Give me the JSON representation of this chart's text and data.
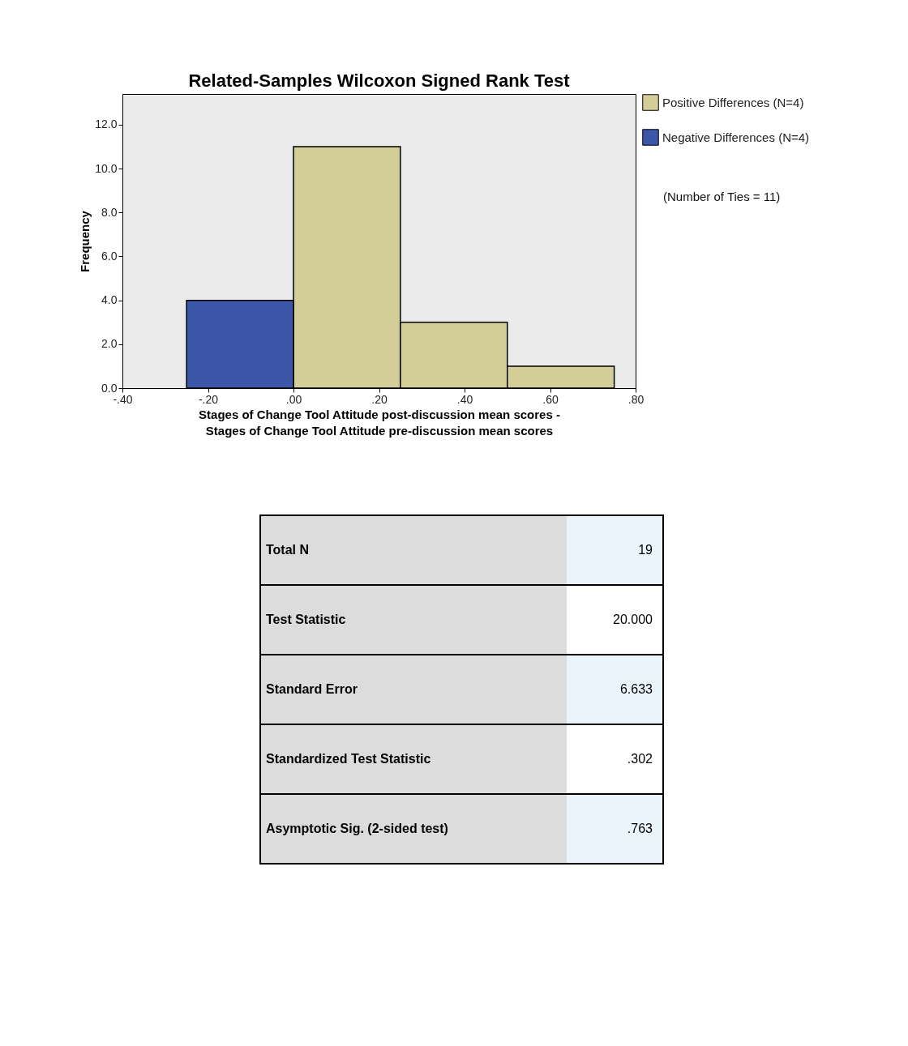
{
  "chart_data": [
    {
      "type": "histogram",
      "title": "Related-Samples Wilcoxon Signed Rank Test",
      "xlabel": "Stages of Change Tool Attitude post-discussion mean scores - Stages of Change Tool Attitude pre-discussion mean scores",
      "ylabel": "Frequency",
      "bins": [
        -0.25,
        0,
        0.25,
        0.5,
        0.75
      ],
      "series": [
        {
          "name": "Positive Differences (N=4)",
          "color": "#d3ce97",
          "values": [
            null,
            11,
            3,
            1
          ]
        },
        {
          "name": "Negative Differences (N=4)",
          "color": "#3c56a8",
          "values": [
            4,
            null,
            null,
            null
          ]
        }
      ],
      "xlim": [
        -0.4,
        0.8
      ],
      "xticks": [
        {
          "value": -0.4,
          "label": "-.40"
        },
        {
          "value": -0.2,
          "label": "-.20"
        },
        {
          "value": 0,
          "label": ".00"
        },
        {
          "value": 0.2,
          "label": ".20"
        },
        {
          "value": 0.4,
          "label": ".40"
        },
        {
          "value": 0.6,
          "label": ".60"
        },
        {
          "value": 0.8,
          "label": ".80"
        }
      ],
      "ylim": [
        0,
        13.4
      ],
      "yticks": [
        {
          "value": 0,
          "label": "0.0"
        },
        {
          "value": 2,
          "label": "2.0"
        },
        {
          "value": 4,
          "label": "4.0"
        },
        {
          "value": 6,
          "label": "6.0"
        },
        {
          "value": 8,
          "label": "8.0"
        },
        {
          "value": 10,
          "label": "10.0"
        },
        {
          "value": 12,
          "label": "12.0"
        }
      ],
      "grid": false,
      "legend": "right",
      "annotations": [
        "(Number of Ties = 11)"
      ]
    },
    {
      "type": "other",
      "annotations": [
        "Total N",
        "19",
        "Test Statistic",
        "20.000",
        "Standard Error",
        "6.633",
        "Standardized Test Statistic",
        ".302",
        "Asymptotic Sig. (2-sided test)",
        ".763"
      ]
    }
  ]
}
